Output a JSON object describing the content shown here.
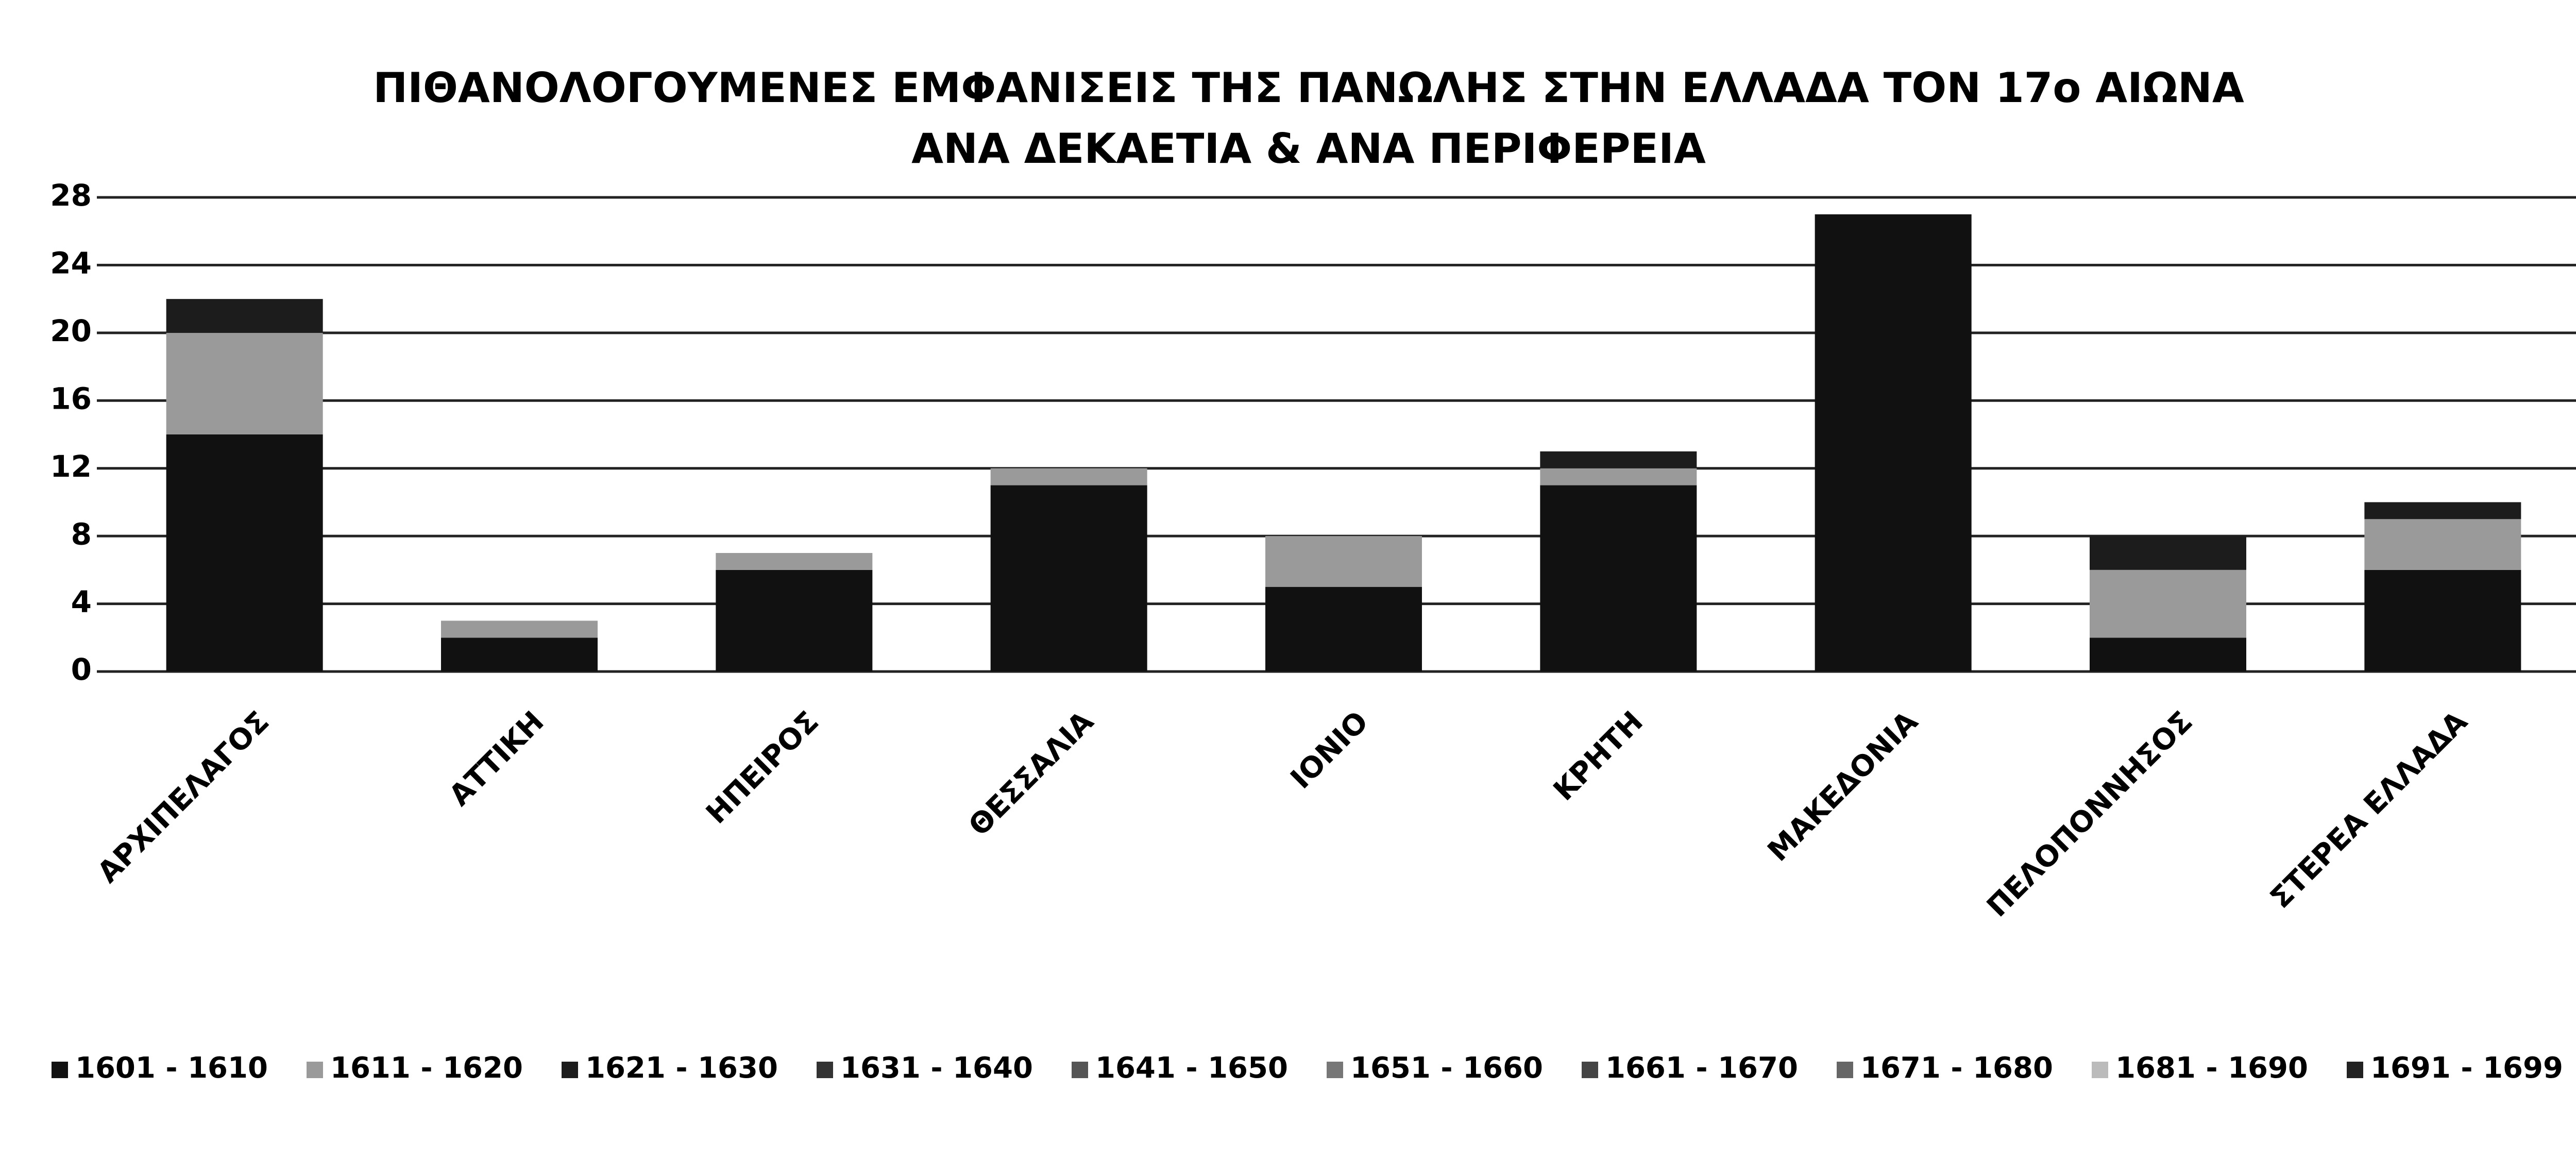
{
  "chart_data": {
    "type": "stacked_bar",
    "title": "ΠΙΘΑΝΟΛΟΓΟΥΜΕΝΕΣ ΕΜΦΑΝΙΣΕΙΣ ΤΗΣ ΠΑΝΩΛΗΣ ΣΤΗΝ ΕΛΛΑΔΑ ΤΟΝ 17ο ΑΙΩΝΑ",
    "subtitle": "ΑΝΑ ΔΕΚΑΕΤΙΑ & ΑΝΑ ΠΕΡΙΦΕΡΕΙΑ",
    "categories": [
      "ΑΡΧΙΠΕΛΑΓΟΣ",
      "ΑΤΤΙΚΗ",
      "ΗΠΕΙΡΟΣ",
      "ΘΕΣΣΑΛΙΑ",
      "ΙΟΝΙΟ",
      "ΚΡΗΤΗ",
      "ΜΑΚΕΔΟΝΙΑ",
      "ΠΕΛΟΠΟΝΝΗΣΟΣ",
      "ΣΤΕΡΕΑ ΕΛΛΑΔΑ"
    ],
    "series": [
      {
        "name": "1601 - 1610",
        "color": "#111111",
        "values": [
          14,
          2,
          6,
          11,
          5,
          11,
          27,
          2,
          6
        ]
      },
      {
        "name": "1611 - 1620",
        "color": "#9a9a9a",
        "values": [
          6,
          1,
          1,
          1,
          3,
          1,
          0,
          4,
          3
        ]
      },
      {
        "name": "1621 - 1630",
        "color": "#1c1c1c",
        "values": [
          2,
          0,
          0,
          0,
          0,
          1,
          0,
          2,
          1
        ]
      },
      {
        "name": "1631 - 1640",
        "color": "#333333",
        "values": [
          0,
          0,
          0,
          0,
          0,
          0,
          0,
          0,
          0
        ]
      },
      {
        "name": "1641 - 1650",
        "color": "#555555",
        "values": [
          0,
          0,
          0,
          0,
          0,
          0,
          0,
          0,
          0
        ]
      },
      {
        "name": "1651 - 1660",
        "color": "#777777",
        "values": [
          0,
          0,
          0,
          0,
          0,
          0,
          0,
          0,
          0
        ]
      },
      {
        "name": "1661 - 1670",
        "color": "#444444",
        "values": [
          0,
          0,
          0,
          0,
          0,
          0,
          0,
          0,
          0
        ]
      },
      {
        "name": "1671 - 1680",
        "color": "#666666",
        "values": [
          0,
          0,
          0,
          0,
          0,
          0,
          0,
          0,
          0
        ]
      },
      {
        "name": "1681 - 1690",
        "color": "#bbbbbb",
        "values": [
          0,
          0,
          0,
          0,
          0,
          0,
          0,
          0,
          0
        ]
      },
      {
        "name": "1691 - 1699",
        "color": "#222222",
        "values": [
          0,
          0,
          0,
          0,
          0,
          0,
          0,
          0,
          0
        ]
      }
    ],
    "ylim": [
      0,
      28
    ],
    "yticks": [
      0,
      4,
      8,
      12,
      16,
      20,
      24,
      28
    ],
    "grid": true,
    "legend": "bottom"
  }
}
